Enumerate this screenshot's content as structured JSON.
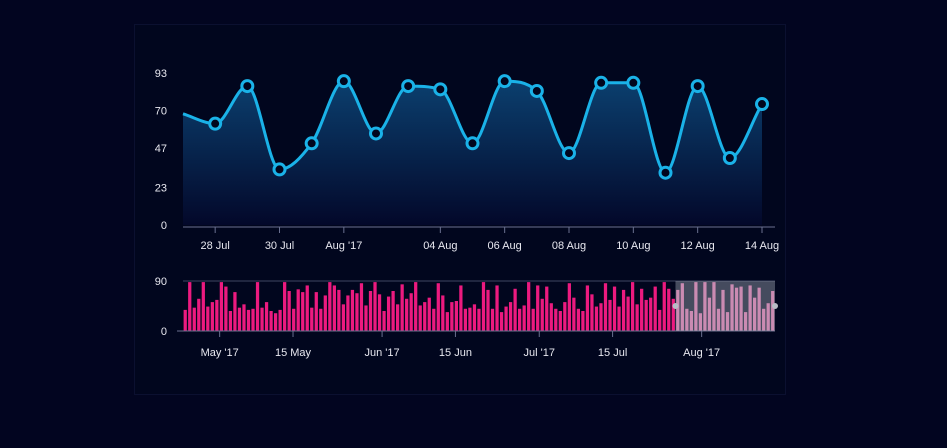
{
  "colors": {
    "background": "#020520",
    "panel": "#01061e",
    "line": "#1ab2e8",
    "area_top": "#0b3f6e",
    "area_bottom": "#03082a",
    "bars": "#ec1a7f",
    "bars_selected": "#f37ab6",
    "selection_overlay": "#9aa0ad",
    "axis": "#6a7090",
    "text": "#e8e8f0"
  },
  "chart_data": [
    {
      "type": "area",
      "name": "main-chart",
      "x_start": "2017-07-27",
      "x_end": "2017-08-14",
      "x_ticks": [
        {
          "label": "28 Jul",
          "date": "2017-07-28"
        },
        {
          "label": "30 Jul",
          "date": "2017-07-30"
        },
        {
          "label": "Aug '17",
          "date": "2017-08-01"
        },
        {
          "label": "04 Aug",
          "date": "2017-08-04"
        },
        {
          "label": "06 Aug",
          "date": "2017-08-06"
        },
        {
          "label": "08 Aug",
          "date": "2017-08-08"
        },
        {
          "label": "10 Aug",
          "date": "2017-08-10"
        },
        {
          "label": "12 Aug",
          "date": "2017-08-12"
        },
        {
          "label": "14 Aug",
          "date": "2017-08-14"
        }
      ],
      "y_ticks": [
        "0",
        "23",
        "47",
        "70",
        "93"
      ],
      "ylim": [
        0,
        93
      ],
      "first_value": 68,
      "points": [
        {
          "date": "2017-07-28",
          "value": 62
        },
        {
          "date": "2017-07-29",
          "value": 85
        },
        {
          "date": "2017-07-30",
          "value": 34
        },
        {
          "date": "2017-07-31",
          "value": 50
        },
        {
          "date": "2017-08-01",
          "value": 88
        },
        {
          "date": "2017-08-02",
          "value": 56
        },
        {
          "date": "2017-08-03",
          "value": 85
        },
        {
          "date": "2017-08-04",
          "value": 83
        },
        {
          "date": "2017-08-05",
          "value": 50
        },
        {
          "date": "2017-08-06",
          "value": 88
        },
        {
          "date": "2017-08-07",
          "value": 82
        },
        {
          "date": "2017-08-08",
          "value": 44
        },
        {
          "date": "2017-08-09",
          "value": 87
        },
        {
          "date": "2017-08-10",
          "value": 87
        },
        {
          "date": "2017-08-11",
          "value": 32
        },
        {
          "date": "2017-08-12",
          "value": 85
        },
        {
          "date": "2017-08-13",
          "value": 41
        },
        {
          "date": "2017-08-14",
          "value": 74
        }
      ]
    },
    {
      "type": "bar",
      "name": "navigator-chart",
      "x_start": "2017-04-24",
      "x_end": "2017-08-15",
      "selection_start": "2017-07-27",
      "selection_end": "2017-08-15",
      "x_ticks": [
        {
          "label": "May '17",
          "date": "2017-05-01"
        },
        {
          "label": "15 May",
          "date": "2017-05-15"
        },
        {
          "label": "Jun '17",
          "date": "2017-06-01"
        },
        {
          "label": "15 Jun",
          "date": "2017-06-15"
        },
        {
          "label": "Jul '17",
          "date": "2017-07-01"
        },
        {
          "label": "15 Jul",
          "date": "2017-07-15"
        },
        {
          "label": "Aug '17",
          "date": "2017-08-01"
        }
      ],
      "y_ticks": [
        "0",
        "90"
      ],
      "ylim": [
        0,
        90
      ],
      "values": [
        38,
        88,
        42,
        58,
        88,
        44,
        52,
        56,
        88,
        80,
        36,
        70,
        42,
        48,
        38,
        40,
        88,
        42,
        52,
        36,
        32,
        38,
        88,
        72,
        40,
        75,
        70,
        82,
        42,
        70,
        40,
        64,
        88,
        82,
        74,
        48,
        64,
        74,
        68,
        86,
        46,
        72,
        88,
        66,
        36,
        62,
        72,
        48,
        84,
        58,
        68,
        88,
        46,
        52,
        60,
        40,
        86,
        64,
        34,
        52,
        54,
        82,
        40,
        42,
        48,
        40,
        88,
        74,
        40,
        82,
        34,
        44,
        52,
        76,
        40,
        46,
        88,
        40,
        82,
        58,
        80,
        50,
        40,
        36,
        52,
        86,
        60,
        40,
        36,
        82,
        66,
        44,
        50,
        86,
        56,
        80,
        44,
        74,
        62,
        88,
        48,
        76,
        56,
        60,
        80,
        38,
        88,
        76,
        58,
        74,
        86,
        40,
        36,
        88,
        32,
        88,
        60,
        88,
        40,
        74,
        34,
        84,
        78,
        80,
        34,
        82,
        60,
        78,
        40,
        50,
        72
      ]
    }
  ]
}
